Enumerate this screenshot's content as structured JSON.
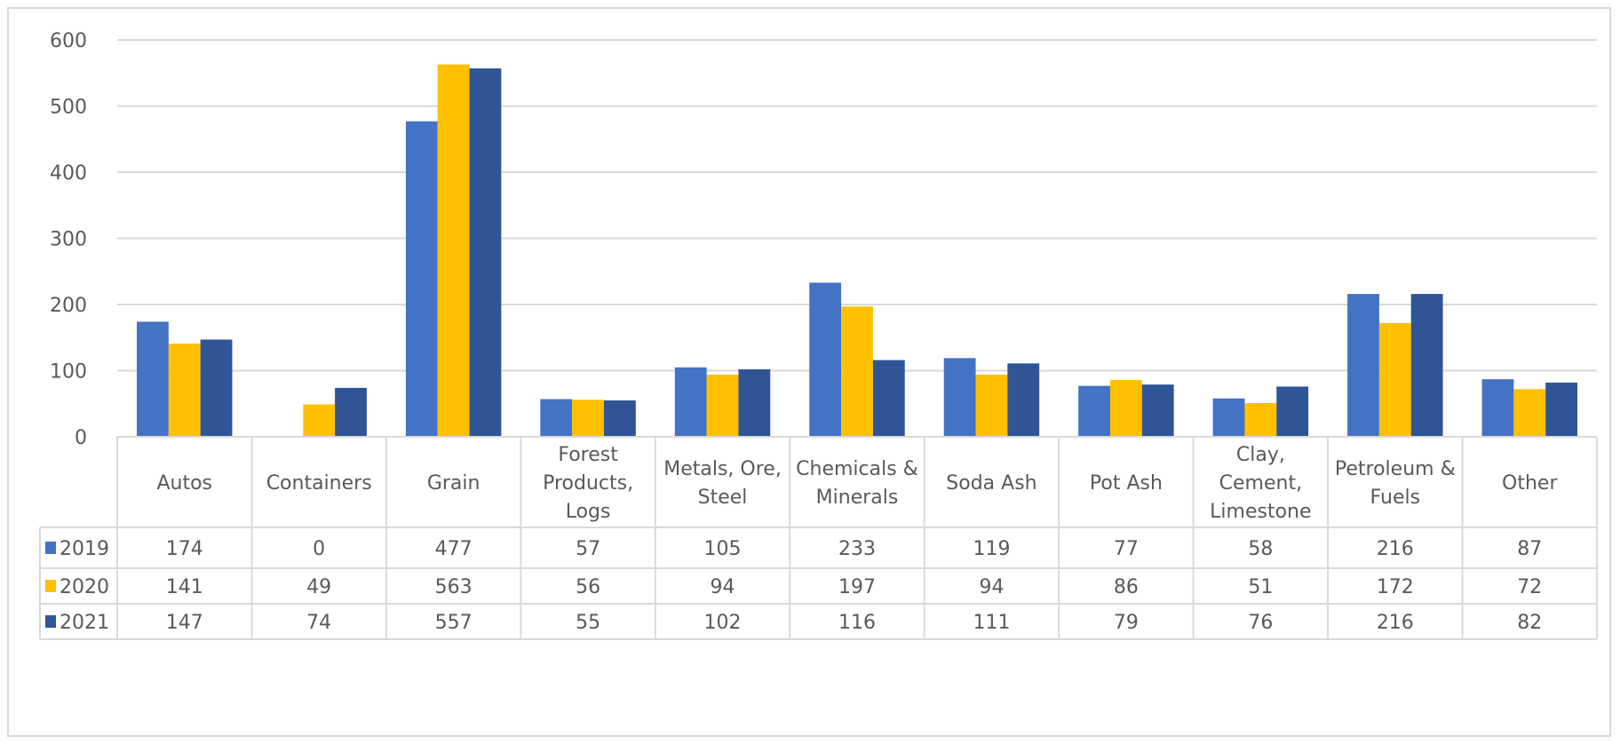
{
  "chart_data": {
    "type": "bar",
    "title": "",
    "xlabel": "",
    "ylabel": "",
    "ylim": [
      0,
      600
    ],
    "yticks": [
      "0",
      "100",
      "200",
      "300",
      "400",
      "500",
      "600"
    ],
    "grid": true,
    "legend": "data-table",
    "categories": [
      [
        "Autos"
      ],
      [
        "Containers"
      ],
      [
        "Grain"
      ],
      [
        "Forest",
        "Products,",
        "Logs"
      ],
      [
        "Metals, Ore,",
        "Steel"
      ],
      [
        "Chemicals &",
        "Minerals"
      ],
      [
        "Soda Ash"
      ],
      [
        "Pot Ash"
      ],
      [
        "Clay,",
        "Cement,",
        "Limestone"
      ],
      [
        "Petroleum &",
        "Fuels"
      ],
      [
        "Other"
      ]
    ],
    "series": [
      {
        "name": "2019",
        "color": "#4472c4",
        "values": [
          174,
          0,
          477,
          57,
          105,
          233,
          119,
          77,
          58,
          216,
          87
        ]
      },
      {
        "name": "2020",
        "color": "#ffc000",
        "values": [
          141,
          49,
          563,
          56,
          94,
          197,
          94,
          86,
          51,
          172,
          72
        ]
      },
      {
        "name": "2021",
        "color": "#2f5597",
        "values": [
          147,
          74,
          557,
          55,
          102,
          116,
          111,
          79,
          76,
          216,
          82
        ]
      }
    ]
  }
}
